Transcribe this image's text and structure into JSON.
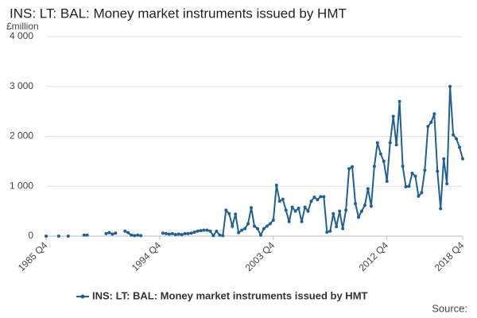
{
  "chart_data": {
    "type": "line",
    "title": "INS: LT: BAL: Money market instruments issued by HMT",
    "y_label": "£million",
    "source": "Source:",
    "categories": [
      "1985 Q4",
      null,
      null,
      null,
      null,
      null,
      null,
      null,
      null,
      null,
      null,
      null,
      null,
      null,
      null,
      null,
      null,
      null,
      null,
      null,
      null,
      null,
      null,
      null,
      null,
      null,
      null,
      null,
      null,
      null,
      null,
      null,
      null,
      null,
      null,
      null,
      "1994 Q4",
      null,
      null,
      null,
      null,
      null,
      null,
      null,
      null,
      null,
      null,
      null,
      null,
      null,
      null,
      null,
      null,
      null,
      null,
      null,
      null,
      null,
      null,
      null,
      null,
      null,
      null,
      null,
      null,
      null,
      null,
      null,
      null,
      null,
      null,
      null,
      "2003 Q4",
      null,
      null,
      null,
      null,
      null,
      null,
      null,
      null,
      null,
      null,
      null,
      null,
      null,
      null,
      null,
      null,
      null,
      null,
      null,
      null,
      null,
      null,
      null,
      null,
      null,
      null,
      null,
      null,
      null,
      null,
      null,
      null,
      null,
      null,
      null,
      "2012 Q4",
      null,
      null,
      null,
      null,
      null,
      null,
      null,
      null,
      null,
      null,
      null,
      null,
      null,
      null,
      null,
      null,
      null,
      null,
      null,
      null,
      null,
      null,
      null,
      "2018 Q4"
    ],
    "series": [
      {
        "name": "INS: LT: BAL: Money market instruments issued by HMT",
        "color": "#206095",
        "values": [
          0,
          null,
          null,
          null,
          0,
          null,
          null,
          0,
          null,
          null,
          null,
          null,
          20,
          20,
          null,
          null,
          null,
          null,
          null,
          50,
          70,
          40,
          60,
          null,
          null,
          100,
          70,
          20,
          10,
          20,
          10,
          null,
          null,
          null,
          null,
          null,
          null,
          60,
          50,
          40,
          50,
          30,
          40,
          30,
          50,
          50,
          60,
          80,
          100,
          110,
          120,
          120,
          100,
          10,
          100,
          20,
          10,
          520,
          450,
          200,
          440,
          70,
          120,
          150,
          250,
          570,
          200,
          150,
          20,
          150,
          200,
          250,
          320,
          1020,
          700,
          740,
          520,
          290,
          580,
          500,
          560,
          290,
          580,
          500,
          700,
          780,
          730,
          790,
          790,
          80,
          100,
          450,
          190,
          500,
          150,
          520,
          1350,
          1390,
          650,
          380,
          500,
          620,
          950,
          600,
          1400,
          1870,
          1650,
          1500,
          1100,
          1870,
          2400,
          1830,
          2700,
          1400,
          990,
          1000,
          1260,
          1200,
          800,
          870,
          1320,
          2200,
          2280,
          2450,
          1300,
          550,
          1550,
          1050,
          3000,
          2030,
          1950,
          1780,
          1550
        ]
      }
    ],
    "ylim": [
      0,
      4000
    ],
    "yticks": [
      0,
      {
        "value": 1000,
        "label": "1 000"
      },
      {
        "value": 2000,
        "label": "2 000"
      },
      {
        "value": 3000,
        "label": "3 000"
      },
      {
        "value": 4000,
        "label": "4 000"
      }
    ],
    "grid": true,
    "legend": "bottom"
  }
}
